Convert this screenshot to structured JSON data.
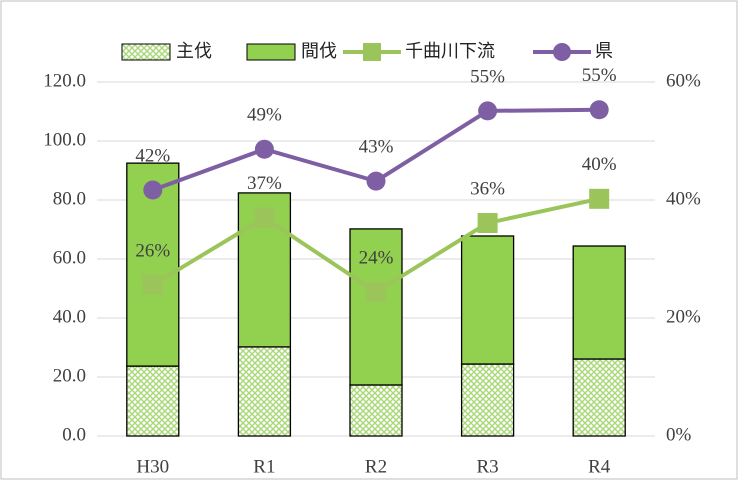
{
  "chart_data": {
    "type": "bar",
    "categories": [
      "H30",
      "R1",
      "R2",
      "R3",
      "R4"
    ],
    "series": [
      {
        "name": "主伐",
        "type": "bar",
        "color": "#92d050",
        "pattern": true,
        "values": [
          23.7,
          30.2,
          17.3,
          24.4,
          26.1
        ]
      },
      {
        "name": "間伐",
        "type": "bar",
        "color": "#92d050",
        "values": [
          68.8,
          52.2,
          52.9,
          43.4,
          38.3
        ]
      },
      {
        "name": "千曲川下流",
        "type": "line",
        "axis": "y2",
        "color": "#9bc55a",
        "marker": "square",
        "values": [
          25.6,
          37.0,
          24.4,
          36.1,
          40.2
        ],
        "value_labels": [
          "26%",
          "37%",
          "24%",
          "36%",
          "40%"
        ]
      },
      {
        "name": "県",
        "type": "line",
        "axis": "y2",
        "color": "#7f5fa3",
        "marker": "circle",
        "values": [
          41.7,
          48.6,
          43.2,
          55.1,
          55.3
        ],
        "value_labels": [
          "42%",
          "49%",
          "43%",
          "55%",
          "55%"
        ]
      }
    ],
    "ylim": [
      0,
      120
    ],
    "yticks": [
      {
        "value": 0,
        "label": "0.0"
      },
      {
        "value": 20,
        "label": "20.0"
      },
      {
        "value": 40,
        "label": "40.0"
      },
      {
        "value": 60,
        "label": "60.0"
      },
      {
        "value": 80,
        "label": "80.0"
      },
      {
        "value": 100,
        "label": "100.0"
      },
      {
        "value": 120,
        "label": "120.0"
      }
    ],
    "y2lim": [
      0,
      60
    ],
    "y2ticks": [
      {
        "value": 0,
        "label": "0%"
      },
      {
        "value": 20,
        "label": "20%"
      },
      {
        "value": 40,
        "label": "40%"
      },
      {
        "value": 60,
        "label": "60%"
      }
    ],
    "grid": true,
    "legend": "top"
  }
}
